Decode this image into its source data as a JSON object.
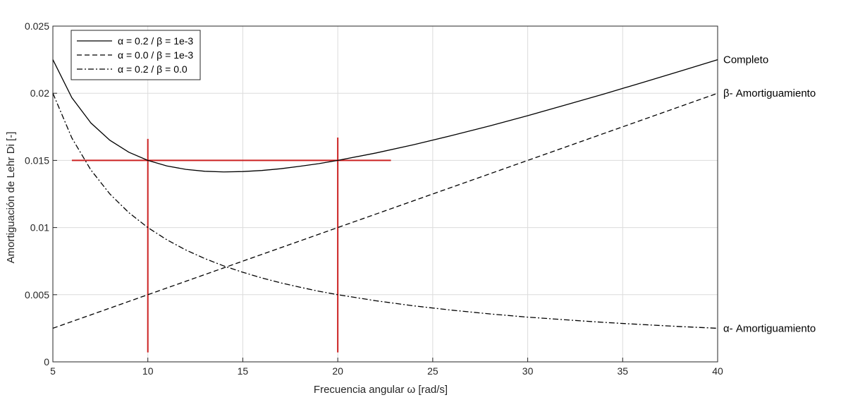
{
  "chart_data": {
    "type": "line",
    "title": "",
    "xlabel": "Frecuencia angular  ω [rad/s]",
    "ylabel": "Amortiguación de Lehr Di [-]",
    "xlim": [
      5,
      40
    ],
    "ylim": [
      0,
      0.025
    ],
    "x_ticks": [
      "5",
      "10",
      "15",
      "20",
      "25",
      "30",
      "35",
      "40"
    ],
    "y_ticks": [
      "0",
      "0.005",
      "0.01",
      "0.015",
      "0.02",
      "0.025"
    ],
    "grid": true,
    "legend_position": "top-left",
    "x": [
      5,
      6,
      7,
      8,
      9,
      10,
      11,
      12,
      13,
      14,
      15,
      16,
      17,
      18,
      19,
      20,
      22,
      24,
      26,
      28,
      30,
      32,
      34,
      36,
      38,
      40
    ],
    "series": [
      {
        "name": "α = 0.2 / β = 1e-3",
        "style": "solid",
        "annotation": "Completo",
        "values": [
          0.0225,
          0.01967,
          0.01779,
          0.0165,
          0.01561,
          0.015,
          0.01459,
          0.01433,
          0.01419,
          0.01414,
          0.01417,
          0.01425,
          0.01438,
          0.01456,
          0.01476,
          0.015,
          0.01555,
          0.01617,
          0.01685,
          0.01757,
          0.01833,
          0.01913,
          0.01994,
          0.02078,
          0.02163,
          0.0225
        ]
      },
      {
        "name": "α = 0.0 / β = 1e-3",
        "style": "dashed",
        "annotation": "β- Amortiguamiento",
        "values": [
          0.0025,
          0.003,
          0.0035,
          0.004,
          0.0045,
          0.005,
          0.0055,
          0.006,
          0.0065,
          0.007,
          0.0075,
          0.008,
          0.0085,
          0.009,
          0.0095,
          0.01,
          0.011,
          0.012,
          0.013,
          0.014,
          0.015,
          0.016,
          0.017,
          0.018,
          0.019,
          0.02
        ]
      },
      {
        "name": "α = 0.2 / β = 0.0",
        "style": "dashdot",
        "annotation": "α- Amortiguamiento",
        "values": [
          0.02,
          0.01667,
          0.01429,
          0.0125,
          0.01111,
          0.01,
          0.00909,
          0.00833,
          0.00769,
          0.00714,
          0.00667,
          0.00625,
          0.00588,
          0.00556,
          0.00526,
          0.005,
          0.00455,
          0.00417,
          0.00385,
          0.00357,
          0.00333,
          0.00313,
          0.00294,
          0.00278,
          0.00263,
          0.0025
        ]
      }
    ],
    "reference_lines": [
      {
        "orientation": "horizontal",
        "y": 0.015,
        "x_from": 6,
        "x_to": 22.8,
        "color": "#cc2222"
      },
      {
        "orientation": "vertical",
        "x": 10,
        "y_from": 0.0007,
        "y_to": 0.0166,
        "color": "#cc2222"
      },
      {
        "orientation": "vertical",
        "x": 20,
        "y_from": 0.0007,
        "y_to": 0.0167,
        "color": "#cc2222"
      }
    ]
  }
}
